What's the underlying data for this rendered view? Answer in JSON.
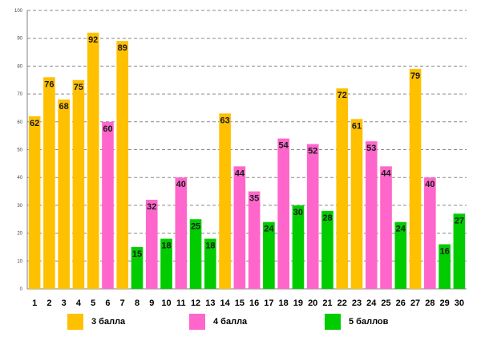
{
  "chart_data": {
    "type": "bar",
    "title": "",
    "xlabel": "",
    "ylabel": "",
    "ylim": [
      0,
      100
    ],
    "yticks": [
      0,
      10,
      20,
      30,
      40,
      50,
      60,
      70,
      80,
      90,
      100
    ],
    "grid": true,
    "legend_position": "bottom",
    "categories": [
      "1",
      "2",
      "3",
      "4",
      "5",
      "6",
      "7",
      "8",
      "9",
      "10",
      "11",
      "12",
      "13",
      "14",
      "15",
      "16",
      "17",
      "18",
      "19",
      "20",
      "21",
      "22",
      "23",
      "24",
      "25",
      "26",
      "27",
      "28",
      "29",
      "30"
    ],
    "values": [
      62,
      76,
      68,
      75,
      92,
      60,
      89,
      15,
      32,
      18,
      40,
      25,
      18,
      63,
      44,
      35,
      24,
      54,
      30,
      52,
      28,
      72,
      61,
      53,
      44,
      24,
      79,
      40,
      16,
      27
    ],
    "groups": [
      "3",
      "3",
      "3",
      "3",
      "3",
      "4",
      "3",
      "5",
      "4",
      "5",
      "4",
      "5",
      "5",
      "3",
      "4",
      "4",
      "5",
      "4",
      "5",
      "4",
      "5",
      "3",
      "3",
      "4",
      "4",
      "5",
      "3",
      "4",
      "5",
      "5"
    ],
    "data_labels": {
      "1": "62",
      "2": "76",
      "3": "68",
      "4": "75",
      "5": "92",
      "6": "60",
      "7": "89",
      "8": "15",
      "9": "32",
      "10": "18",
      "11": "40",
      "12": "25",
      "13": "18",
      "14": "63",
      "15": "44",
      "16": "35",
      "17": "24",
      "18": "54",
      "19": "30",
      "20": "52",
      "21": "28",
      "22": "72",
      "23": "61",
      "24": "53",
      "25": "44",
      "26": "24",
      "27": "79",
      "28": "40",
      "29": "16",
      "30": "27"
    },
    "series": [
      {
        "key": "3",
        "name": "3 балла",
        "color": "#FFC000"
      },
      {
        "key": "4",
        "name": "4 балла",
        "color": "#FF66CC"
      },
      {
        "key": "5",
        "name": "5 баллов",
        "color": "#00CC00"
      }
    ]
  }
}
